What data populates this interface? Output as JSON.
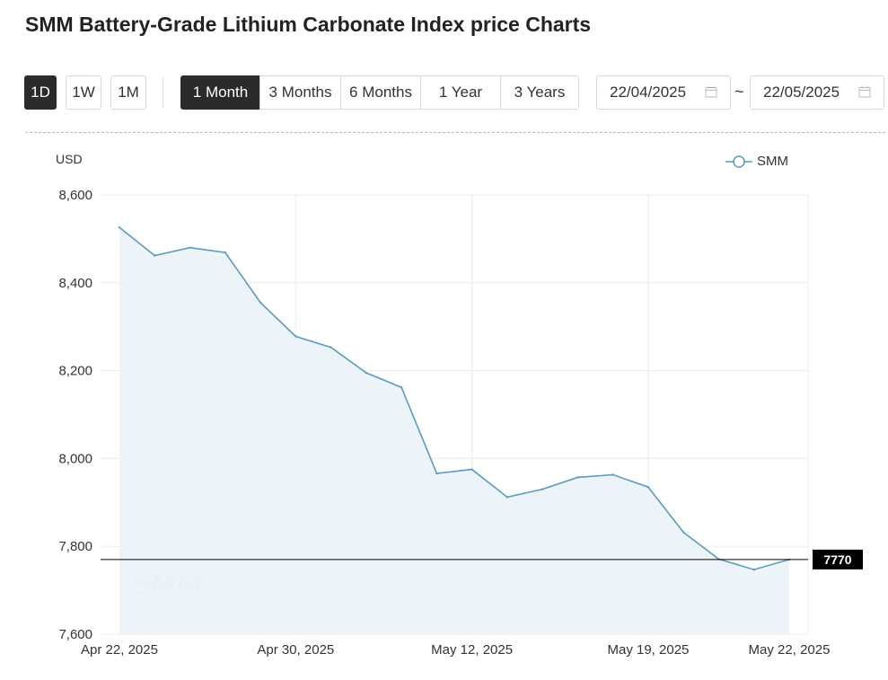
{
  "header": {
    "title": "SMM Battery-Grade Lithium Carbonate Index price Charts"
  },
  "interval_buttons": [
    "1D",
    "1W",
    "1M"
  ],
  "range_buttons": [
    "1 Month",
    "3 Months",
    "6 Months",
    "1 Year",
    "3 Years"
  ],
  "active_interval": "1D",
  "active_range": "1 Month",
  "date_range": {
    "start": "22/04/2025",
    "separator": "~",
    "end": "22/05/2025"
  },
  "icons": {
    "calendar": "calendar-icon"
  },
  "colors": {
    "line": "#5b9bbd",
    "area": "#eaf3f8",
    "active_button": "#2b2b2b",
    "label_bg": "#000000"
  },
  "chart_data": {
    "type": "area",
    "unit_label": "USD",
    "series": [
      {
        "name": "SMM",
        "values": [
          8526,
          8462,
          8480,
          8469,
          8355,
          8278,
          8253,
          8195,
          8162,
          7966,
          7975,
          7912,
          7930,
          7957,
          7963,
          7935,
          7832,
          7771,
          7747,
          7770
        ]
      }
    ],
    "x_tick_labels": [
      "Apr 22, 2025",
      "Apr 30, 2025",
      "May 12, 2025",
      "May 19, 2025",
      "May 22, 2025"
    ],
    "x_tick_indices": [
      0,
      5,
      10,
      15,
      19
    ],
    "ylim": [
      7600,
      8600
    ],
    "y_ticks": [
      7600,
      7800,
      8000,
      8200,
      8400,
      8600
    ],
    "y_tick_labels": [
      "7,600",
      "7,800",
      "8,000",
      "8,200",
      "8,400",
      "8,600"
    ],
    "last_value_label": "7770",
    "last_value": 7770,
    "grid": true,
    "legend_position": "top-right",
    "watermark": "SMM metal.com"
  }
}
